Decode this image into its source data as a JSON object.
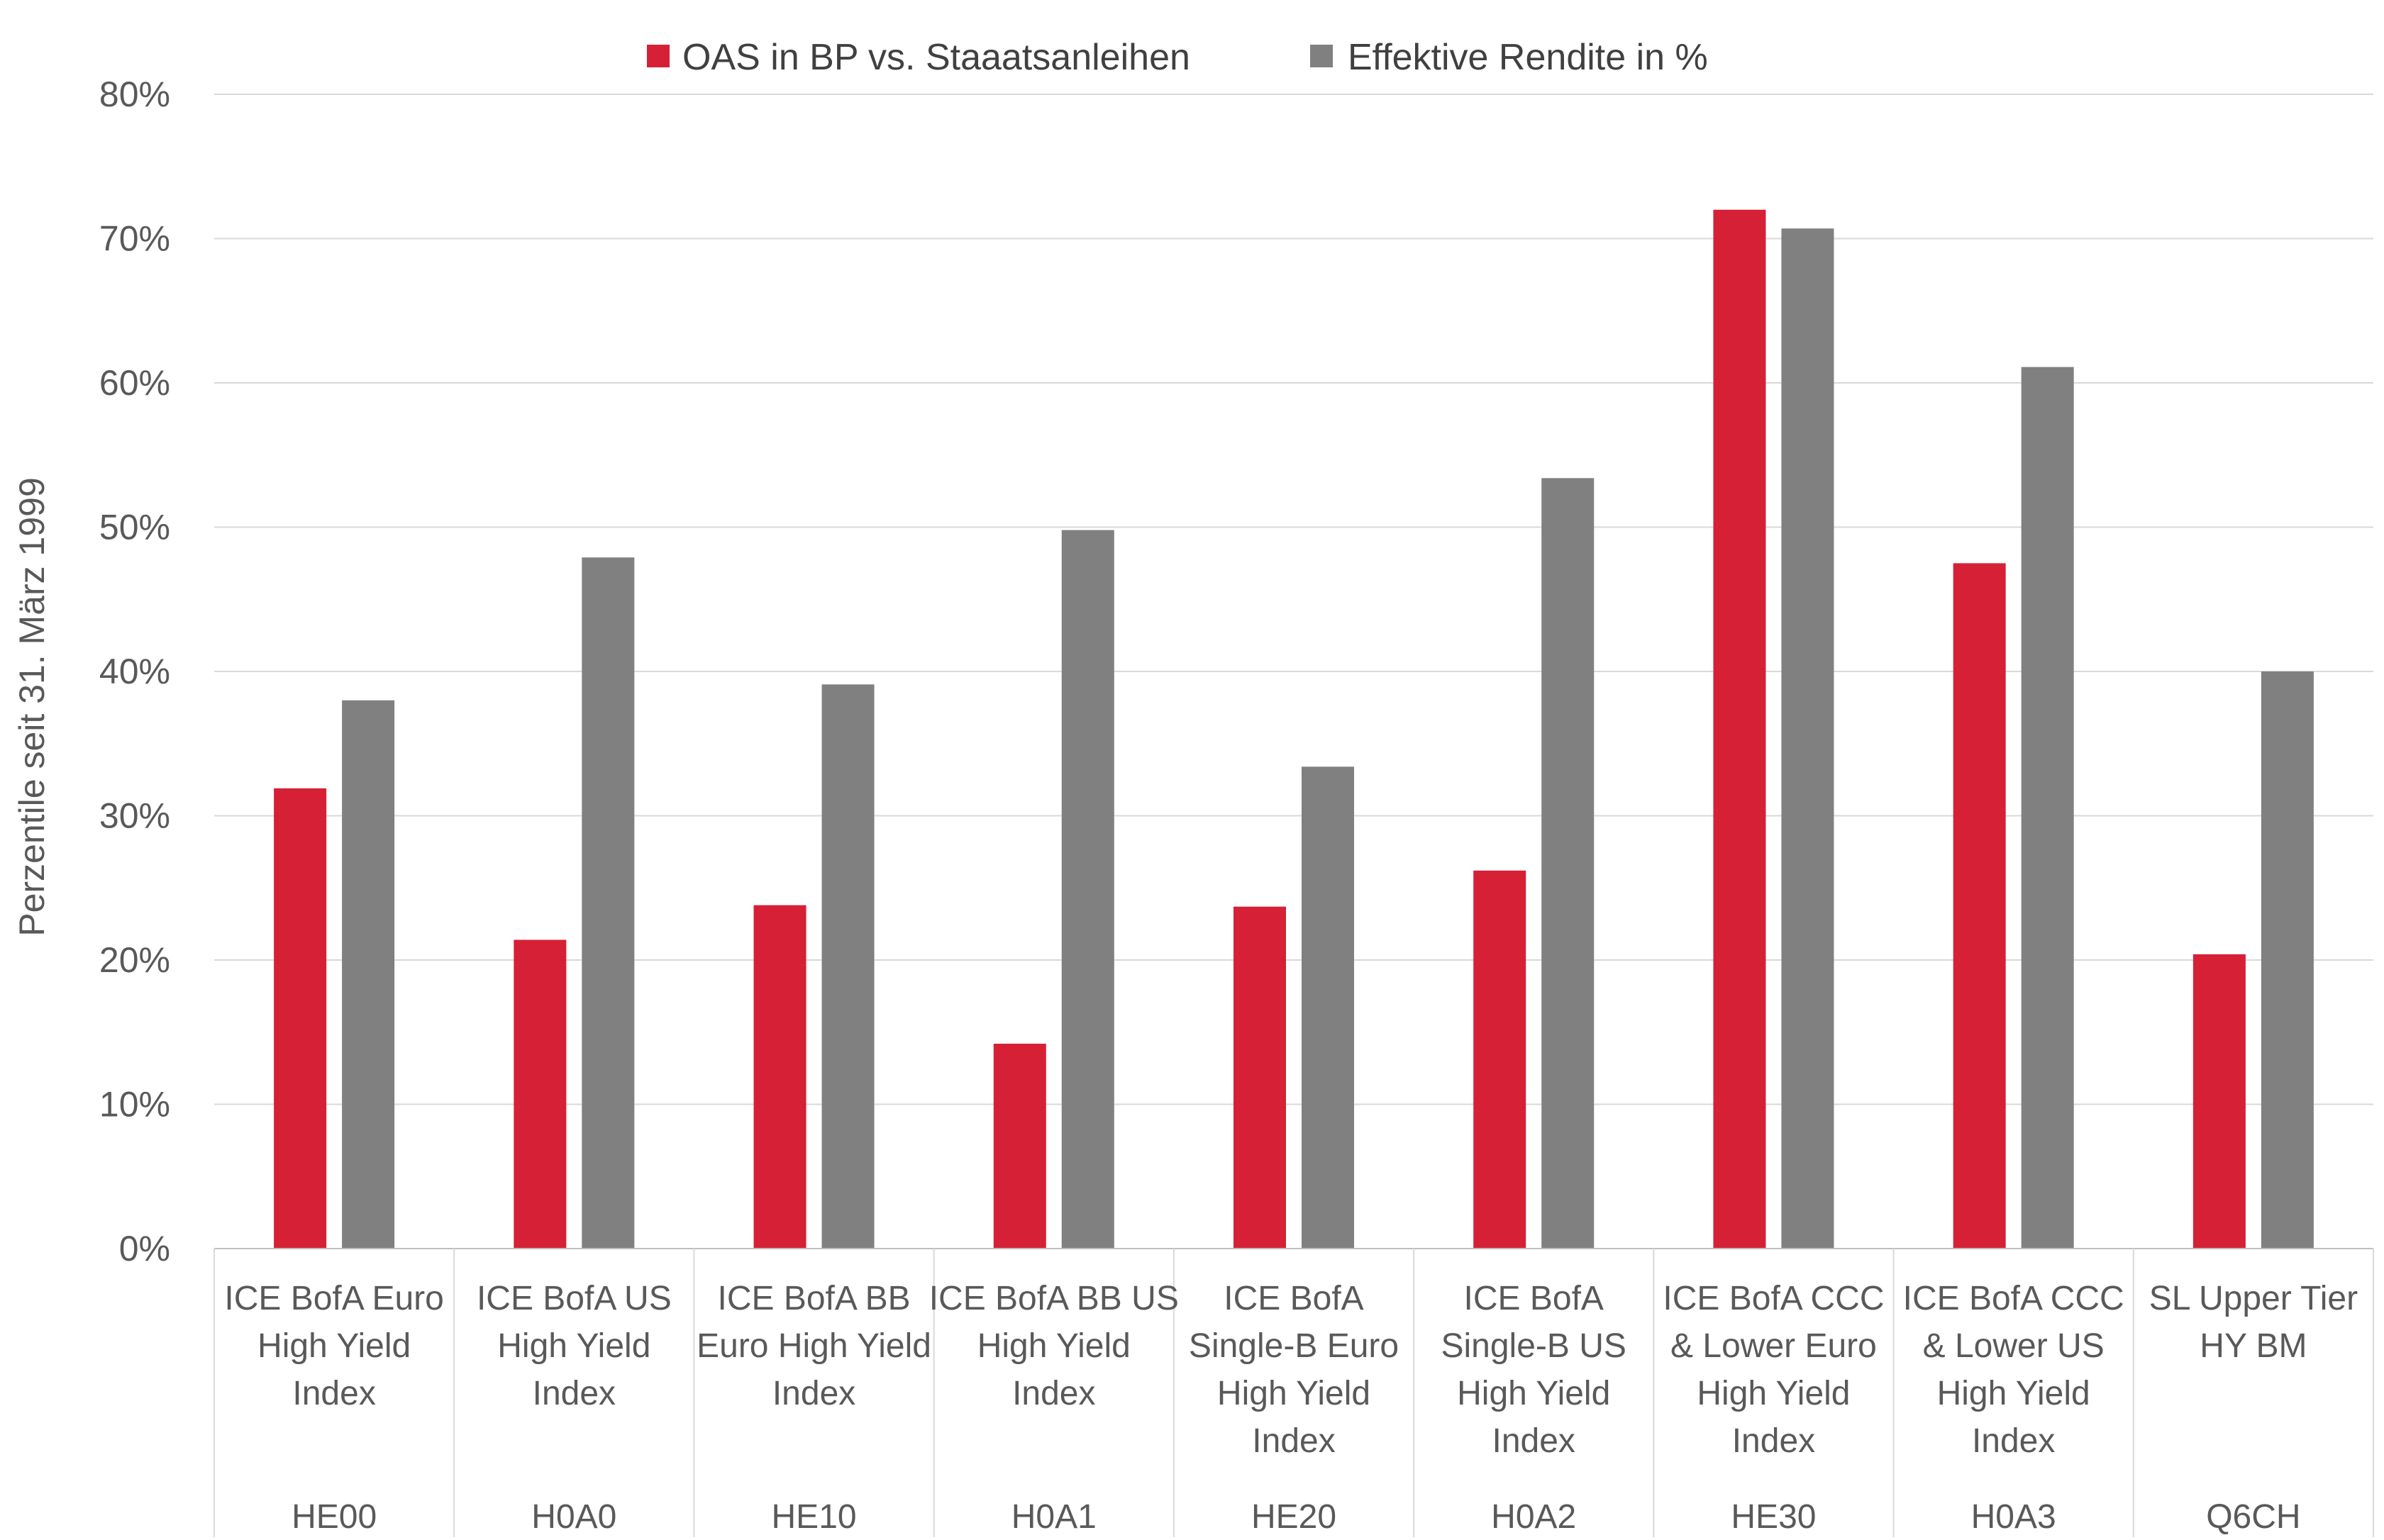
{
  "chart_data": {
    "type": "bar",
    "title": "",
    "xlabel": "",
    "ylabel": "Perzentile seit 31. März 1999",
    "ylim": [
      0,
      80
    ],
    "y_ticks": [
      0,
      10,
      20,
      30,
      40,
      50,
      60,
      70,
      80
    ],
    "y_tick_labels": [
      "0%",
      "10%",
      "20%",
      "30%",
      "40%",
      "50%",
      "60%",
      "70%",
      "80%"
    ],
    "grid": true,
    "legend_position": "top-center",
    "categories": [
      {
        "lines": [
          "ICE BofA Euro",
          "High Yield",
          "Index"
        ],
        "code": "HE00"
      },
      {
        "lines": [
          "ICE BofA US",
          "High Yield",
          "Index"
        ],
        "code": "H0A0"
      },
      {
        "lines": [
          "ICE BofA BB",
          "Euro High Yield",
          "Index"
        ],
        "code": "HE10"
      },
      {
        "lines": [
          "ICE BofA BB US",
          "High Yield",
          "Index"
        ],
        "code": "H0A1"
      },
      {
        "lines": [
          "ICE BofA",
          "Single-B Euro",
          "High Yield",
          "Index"
        ],
        "code": "HE20"
      },
      {
        "lines": [
          "ICE BofA",
          "Single-B US",
          "High Yield",
          "Index"
        ],
        "code": "H0A2"
      },
      {
        "lines": [
          "ICE BofA CCC",
          "& Lower Euro",
          "High Yield",
          "Index"
        ],
        "code": "HE30"
      },
      {
        "lines": [
          "ICE BofA CCC",
          "& Lower US",
          "High Yield",
          "Index"
        ],
        "code": "H0A3"
      },
      {
        "lines": [
          "SL Upper Tier",
          "HY BM"
        ],
        "code": "Q6CH"
      }
    ],
    "series": [
      {
        "name": "OAS in BP vs. Staaatsanleihen",
        "color": "#D62035",
        "values": [
          31.9,
          21.4,
          23.8,
          14.2,
          23.7,
          26.2,
          72.0,
          47.5,
          20.4
        ]
      },
      {
        "name": "Effektive Rendite in %",
        "color": "#808080",
        "values": [
          38.0,
          47.9,
          39.1,
          49.8,
          33.4,
          53.4,
          70.7,
          61.1,
          40.0
        ]
      }
    ]
  }
}
